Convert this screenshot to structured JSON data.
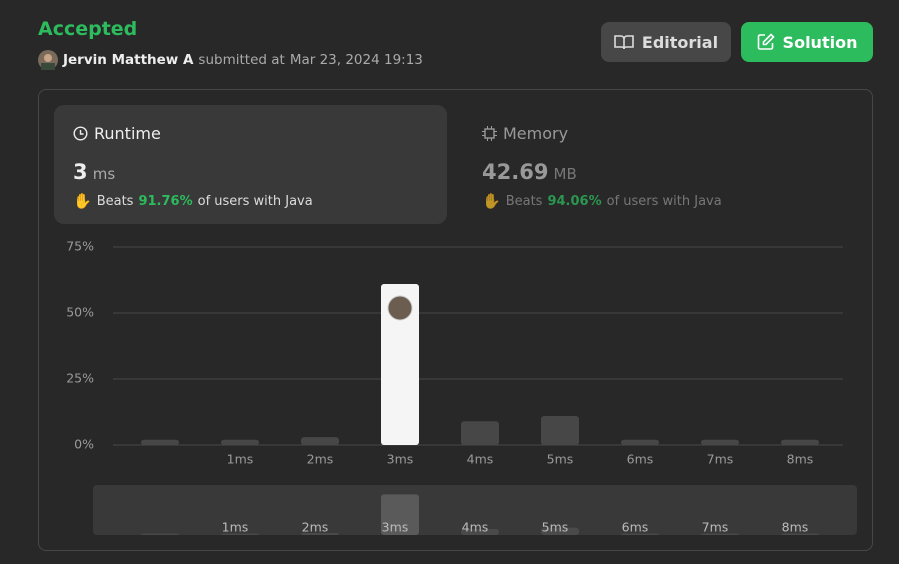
{
  "header": {
    "status": "Accepted",
    "user": "Jervin Matthew A",
    "submitted_text": "submitted at",
    "date": "Mar 23, 2024 19:13",
    "buttons": [
      "Editorial",
      "Solution"
    ]
  },
  "runtime": {
    "label": "Runtime",
    "value": "3",
    "unit": "ms",
    "beats": "Beats",
    "percent": "91.76%",
    "suffix": "of users with Java"
  },
  "memory": {
    "label": "Memory",
    "value": "42.69",
    "unit": "MB",
    "beats": "Beats",
    "percent": "94.06%",
    "suffix": "of users with Java"
  },
  "chart_data": {
    "type": "bar",
    "categories": [
      null,
      "1ms",
      "2ms",
      "3ms",
      "4ms",
      "5ms",
      "6ms",
      "7ms",
      "8ms"
    ],
    "values": [
      2,
      2,
      3,
      61,
      9,
      11,
      2,
      2,
      2
    ],
    "colors": [
      "#474747",
      "#474747",
      "#474747",
      "#f5f5f5",
      "#474747",
      "#474747",
      "#474747",
      "#474747",
      "#474747"
    ],
    "ylim": [
      0,
      75
    ],
    "yticks": [
      {
        "value": 0,
        "label": "0%"
      },
      {
        "value": 25,
        "label": "25%"
      },
      {
        "value": 50,
        "label": "50%"
      },
      {
        "value": 75,
        "label": "75%"
      }
    ],
    "grid": true
  }
}
